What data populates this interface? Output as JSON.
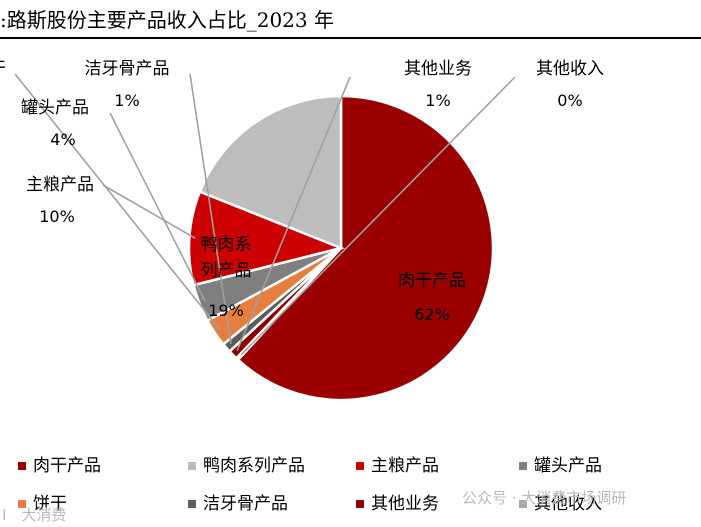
{
  "title": ":路斯股份主要产品收入占比_2023 年",
  "watermark": {
    "left_text": "I 大消费",
    "right_text": "公众号 · 大消费市场调研"
  },
  "chart_data": {
    "type": "pie",
    "title": ":路斯股份主要产品收入占比_2023 年",
    "categories": [
      "肉干产品",
      "鸭肉系列产品",
      "主粮产品",
      "罐头产品",
      "饼干",
      "洁牙骨产品",
      "其他业务",
      "其他收入"
    ],
    "values": [
      62,
      19,
      10,
      4,
      3,
      1,
      1,
      0
    ],
    "value_labels": [
      "62%",
      "19%",
      "10%",
      "4%",
      "",
      "1%",
      "1%",
      "0%"
    ],
    "slice_labels": [
      "肉干产品",
      "鸭肉系\n列产品",
      "主粮产品",
      "罐头产品",
      "干",
      "洁牙骨产品",
      "其他业务",
      "其他收入"
    ],
    "colors": [
      "#9a0000",
      "#bdbdbd",
      "#cc0000",
      "#7f7f7f",
      "#e67e3e",
      "#5c5c5c",
      "#8b0000",
      "#a6a6a6"
    ],
    "legend": {
      "placement": "bottom",
      "items": [
        "肉干产品",
        "鸭肉系列产品",
        "主粮产品",
        "罐头产品",
        "饼干",
        "洁牙骨产品",
        "其他业务",
        "其他收入"
      ]
    }
  }
}
